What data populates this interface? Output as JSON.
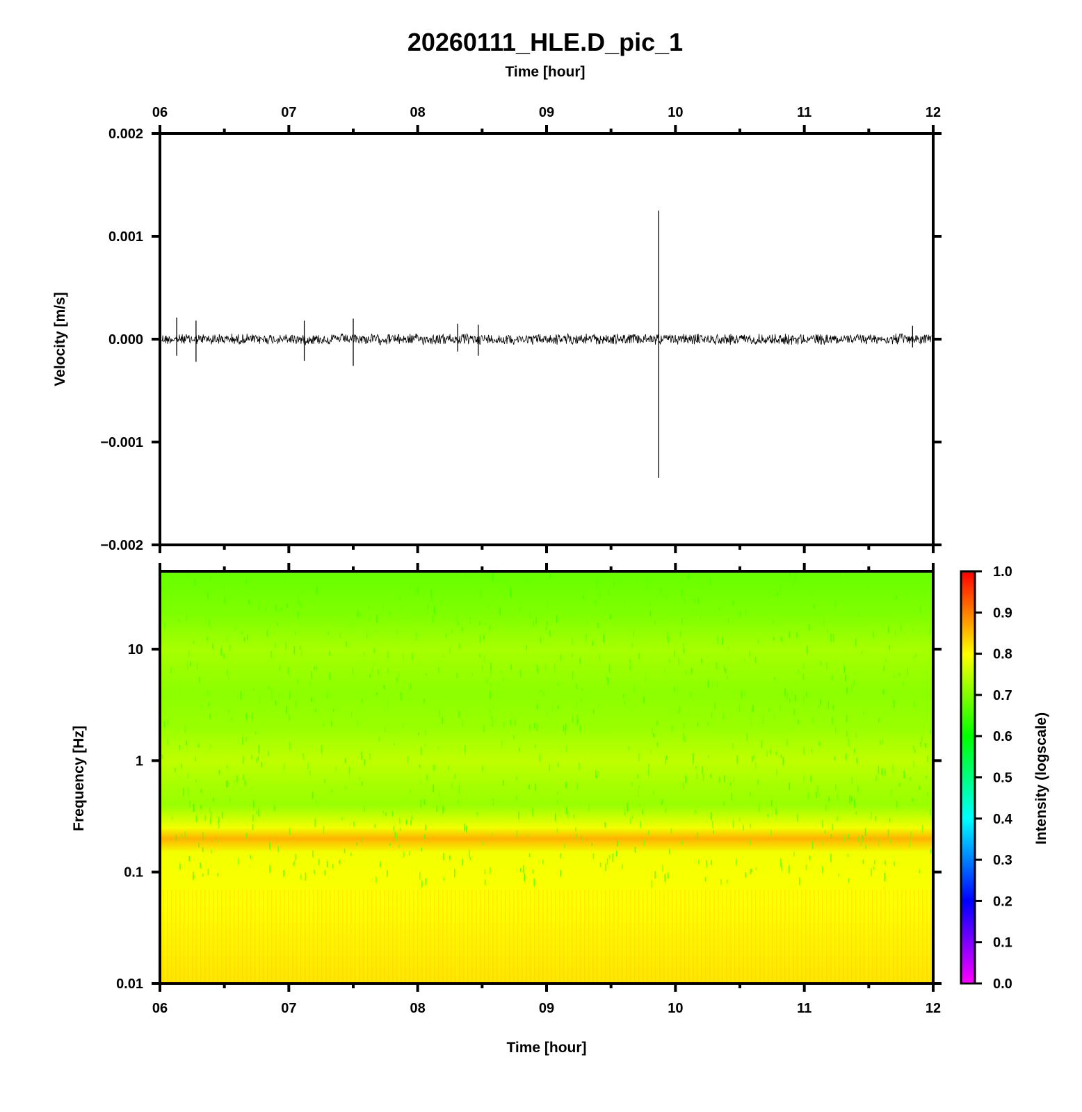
{
  "chart_data": [
    {
      "type": "line",
      "title": "20260111_HLE.D_pic_1",
      "xlabel": "Time [hour]",
      "ylabel": "Velocity [m/s]",
      "xlim": [
        6,
        12
      ],
      "ylim": [
        -0.002,
        0.002
      ],
      "x_tick_labels": [
        "06",
        "07",
        "08",
        "09",
        "10",
        "11",
        "12"
      ],
      "y_tick_labels": [
        "0.002",
        "0.001",
        "0.000",
        "−0.001",
        "−0.002"
      ],
      "y_ticks": [
        0.002,
        0.001,
        0.0,
        -0.001,
        -0.002
      ],
      "grid": false,
      "series": [
        {
          "color": "#000000",
          "noise_amplitude": 5e-05,
          "spikes": [
            {
              "x": 6.13,
              "max": 0.00021,
              "min": -0.00016
            },
            {
              "x": 6.28,
              "max": 0.00018,
              "min": -0.00022
            },
            {
              "x": 7.12,
              "max": 0.00018,
              "min": -0.00021
            },
            {
              "x": 7.5,
              "max": 0.0002,
              "min": -0.00026
            },
            {
              "x": 8.31,
              "max": 0.00015,
              "min": -0.00012
            },
            {
              "x": 8.47,
              "max": 0.00014,
              "min": -0.00016
            },
            {
              "x": 9.87,
              "max": 0.00125,
              "min": -0.00135
            },
            {
              "x": 11.84,
              "max": 0.00013,
              "min": -8e-05
            }
          ]
        }
      ]
    },
    {
      "type": "heatmap",
      "xlabel": "Time [hour]",
      "ylabel": "Frequency [Hz]",
      "xlim": [
        6,
        12
      ],
      "ylim": [
        0.01,
        50
      ],
      "y_scale": "log",
      "x_tick_labels": [
        "06",
        "07",
        "08",
        "09",
        "10",
        "11",
        "12"
      ],
      "y_tick_labels": [
        "10",
        "1",
        "0.1",
        "0.01"
      ],
      "y_ticks": [
        10,
        1,
        0.1,
        0.01
      ],
      "intensity_profile": [
        {
          "freq": 0.01,
          "intensity": 0.82
        },
        {
          "freq": 0.05,
          "intensity": 0.8
        },
        {
          "freq": 0.15,
          "intensity": 0.79
        },
        {
          "freq": 0.2,
          "intensity": 0.86
        },
        {
          "freq": 0.25,
          "intensity": 0.79
        },
        {
          "freq": 0.4,
          "intensity": 0.72
        },
        {
          "freq": 0.6,
          "intensity": 0.73
        },
        {
          "freq": 1,
          "intensity": 0.75
        },
        {
          "freq": 2,
          "intensity": 0.72
        },
        {
          "freq": 4,
          "intensity": 0.71
        },
        {
          "freq": 10,
          "intensity": 0.73
        },
        {
          "freq": 20,
          "intensity": 0.7
        },
        {
          "freq": 50,
          "intensity": 0.68
        }
      ],
      "colorbar": {
        "label": "Intensity (logscale)",
        "range": [
          0.0,
          1.0
        ],
        "tick_labels": [
          "1.0",
          "0.9",
          "0.8",
          "0.7",
          "0.6",
          "0.5",
          "0.4",
          "0.3",
          "0.2",
          "0.1",
          "0.0"
        ],
        "ticks": [
          1.0,
          0.9,
          0.8,
          0.7,
          0.6,
          0.5,
          0.4,
          0.3,
          0.2,
          0.1,
          0.0
        ],
        "colormap": "rainbow",
        "colors": [
          "#ff00ff",
          "#0000ff",
          "#00ffff",
          "#00ff00",
          "#ffff00",
          "#ff0000"
        ]
      }
    }
  ]
}
